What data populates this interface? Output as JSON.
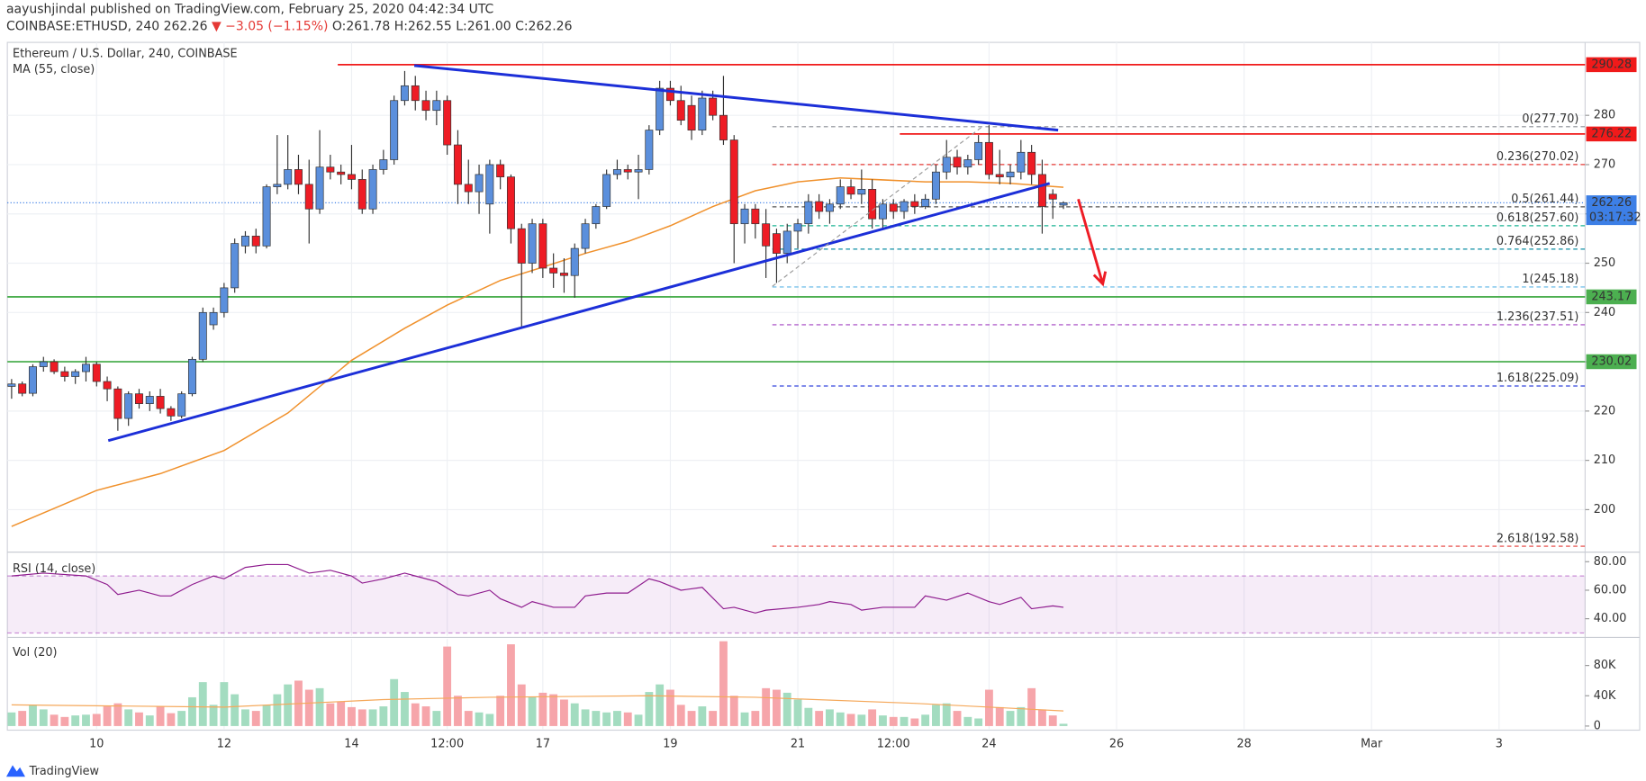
{
  "header": {
    "published": "aayushjindal published on TradingView.com, February 25, 2020 04:42:34 UTC",
    "symbol": "COINBASE:ETHUSD, 240",
    "last": "262.26",
    "change": "▼ −3.05 (−1.15%)",
    "ohlc": "O:261.78 H:262.55 L:261.00 C:262.26"
  },
  "footer": "TradingView",
  "chart_data": [
    {
      "type": "candlestick",
      "title": "Ethereum / U.S. Dollar, 240, COINBASE",
      "up_color": "#5b8fdc",
      "down_color": "#ee1c25",
      "xlim": [
        -0.4,
        148.1
      ],
      "xticks": [
        {
          "value": 8,
          "label": "10"
        },
        {
          "value": 20,
          "label": "12"
        },
        {
          "value": 32,
          "label": "14"
        },
        {
          "value": 41,
          "label": "12:00"
        },
        {
          "value": 50,
          "label": "17"
        },
        {
          "value": 62,
          "label": "19"
        },
        {
          "value": 74,
          "label": "21"
        },
        {
          "value": 83,
          "label": "12:00"
        },
        {
          "value": 92,
          "label": "24"
        },
        {
          "value": 104,
          "label": "26"
        },
        {
          "value": 116,
          "label": "28"
        },
        {
          "value": 128,
          "label": "Mar"
        },
        {
          "value": 140,
          "label": "3"
        }
      ],
      "ylim": [
        191.6,
        294.8
      ],
      "yticks": [
        200,
        210,
        220,
        230,
        240,
        250,
        260,
        270,
        280
      ],
      "grid": true,
      "open": [
        225,
        225.5,
        223.6,
        229,
        230,
        228,
        227,
        228,
        229.5,
        226,
        224.5,
        218.5,
        223.5,
        221.5,
        223,
        220.5,
        219,
        223.5,
        230.5,
        237.5,
        240,
        245,
        253.5,
        255.5,
        253.5,
        265.5,
        266,
        269,
        266,
        261,
        269.5,
        268.5,
        268,
        267,
        261,
        269,
        271,
        283,
        286,
        283,
        281,
        283,
        274,
        266,
        264.5,
        262,
        270,
        267.5,
        257,
        250,
        258,
        249,
        248,
        247.5,
        253,
        258,
        261.5,
        268,
        269,
        268.5,
        269,
        277,
        285.5,
        283,
        282,
        277,
        283.5,
        280,
        275,
        258,
        261,
        258,
        256,
        252,
        256.5,
        258,
        262.5,
        260.5,
        262,
        265.5,
        264,
        265,
        259,
        262,
        260.5,
        262.5,
        261.5,
        263,
        268.5,
        271.5,
        269.5,
        271,
        274.5,
        268,
        267.5,
        268.5,
        272.5,
        268,
        264,
        261.78
      ],
      "high": [
        226.5,
        226,
        229.5,
        231,
        230.5,
        229,
        228.5,
        231,
        230,
        227,
        225,
        224,
        224.5,
        224,
        224.5,
        221,
        224,
        231,
        241,
        241,
        246,
        255,
        256.5,
        257,
        266,
        276,
        276,
        272,
        271,
        277,
        272,
        270,
        274,
        269,
        270,
        273,
        284,
        289,
        288,
        285,
        285,
        284,
        277,
        271,
        270,
        271,
        271,
        268,
        258,
        259,
        259,
        252,
        251,
        254,
        259,
        262,
        269,
        271,
        270,
        272,
        278,
        287,
        287,
        286,
        284,
        285,
        285,
        288,
        276,
        262,
        262,
        261,
        257,
        258,
        259,
        264,
        264,
        263,
        267,
        267,
        269,
        267,
        263,
        263,
        263,
        264,
        264,
        270,
        275,
        273,
        272,
        276,
        278,
        273,
        270,
        275,
        274,
        271,
        265,
        262.55
      ],
      "low": [
        222.5,
        223,
        223,
        228,
        227.5,
        226,
        225.5,
        226,
        225,
        222,
        216,
        217,
        220.5,
        220,
        219.5,
        218,
        218.5,
        223,
        230,
        236.5,
        239,
        244,
        252,
        252,
        253,
        264,
        265,
        264,
        254,
        260,
        267,
        266,
        265,
        260,
        260,
        268,
        270,
        282,
        281,
        279,
        278,
        272,
        262,
        262,
        260,
        256,
        265,
        254,
        237,
        248,
        247,
        245,
        244,
        243,
        252,
        257,
        261,
        267,
        267,
        263,
        268,
        276,
        282,
        278,
        275,
        276,
        279,
        274,
        250,
        254,
        255,
        247,
        246,
        250,
        253,
        256,
        259,
        258,
        261,
        263,
        262,
        257,
        257,
        259,
        259,
        260,
        261,
        262,
        267,
        268,
        268,
        270,
        267,
        266,
        266,
        267,
        266,
        256,
        259,
        261.0
      ],
      "close": [
        225.5,
        223.6,
        229,
        230,
        228,
        227,
        228,
        229.5,
        226,
        224.5,
        218.5,
        223.5,
        221.5,
        223,
        220.5,
        219,
        223.5,
        230.5,
        240,
        240,
        245,
        254,
        255.5,
        253.5,
        265.5,
        266,
        269,
        266,
        261,
        269.5,
        268.5,
        268,
        267,
        261,
        269,
        271,
        283,
        286,
        283,
        281,
        283,
        274,
        266,
        264.5,
        268,
        270,
        267.5,
        257,
        250,
        258,
        249,
        248,
        247.5,
        253,
        258,
        261.5,
        268,
        269,
        268.5,
        269,
        277,
        285.5,
        283,
        279,
        277,
        283.5,
        280,
        275,
        258,
        261,
        258,
        253.5,
        252,
        256.5,
        258,
        262.5,
        260.5,
        262,
        265.5,
        264,
        265,
        259,
        262,
        260.5,
        262.5,
        261.5,
        263,
        268.5,
        271.5,
        269.5,
        271,
        274.5,
        268,
        267.5,
        268.5,
        272.5,
        268,
        261.5,
        263,
        262.26
      ],
      "ma": {
        "name": "MA (55, close)",
        "color": "#f0912c",
        "x": [
          0,
          8,
          14,
          20,
          26,
          32,
          37,
          41,
          46,
          50,
          54,
          58,
          62,
          66,
          70,
          74,
          78,
          82,
          86,
          90,
          94,
          99
        ],
        "values": [
          196.6,
          203.9,
          207.3,
          212,
          219.6,
          230.3,
          236.8,
          241.5,
          246.5,
          249.2,
          252,
          254.4,
          257.6,
          261.5,
          264.7,
          266.5,
          267.3,
          266.9,
          266.5,
          266.5,
          266.2,
          265.4
        ]
      },
      "levels": [
        {
          "value": 290.28,
          "label": "290.28",
          "color": "#f01a1a",
          "from": 30.7
        },
        {
          "value": 276.22,
          "label": "276.22",
          "color": "#f01a1a",
          "from": 83.6
        },
        {
          "value": 243.17,
          "label": "243.17",
          "color": "#4caf50"
        },
        {
          "value": 230.02,
          "label": "230.02",
          "color": "#4caf50"
        }
      ],
      "last_price": {
        "value": 262.26,
        "label": "262.26",
        "countdown": "03:17:32",
        "color": "#3d7fe6"
      },
      "fib": {
        "from": 71.6,
        "levels": [
          {
            "value": 277.7,
            "label": "0(277.70)",
            "color": "#888c94"
          },
          {
            "value": 270.02,
            "label": "0.236(270.02)",
            "color": "#e53935"
          },
          {
            "value": 261.44,
            "label": "0.5(261.44)",
            "color": "#555555"
          },
          {
            "value": 257.6,
            "label": "0.618(257.60)",
            "color": "#1ab394"
          },
          {
            "value": 252.86,
            "label": "0.764(252.86)",
            "color": "#0f8fa6"
          },
          {
            "value": 245.18,
            "label": "1(245.18)",
            "color": "#5bb5e6"
          },
          {
            "value": 237.51,
            "label": "1.236(237.51)",
            "color": "#a13fc0"
          },
          {
            "value": 225.09,
            "label": "1.618(225.09)",
            "color": "#3344dd"
          },
          {
            "value": 192.58,
            "label": "2.618(192.58)",
            "color": "#e53935"
          }
        ]
      },
      "trendlines": [
        {
          "x": [
            37.9,
            98.5
          ],
          "y": [
            290.1,
            277.0
          ],
          "color": "#1c2fd8"
        },
        {
          "x": [
            9.1,
            97.7
          ],
          "y": [
            214.0,
            266.2
          ],
          "color": "#1c2fd8"
        }
      ],
      "fib_line": {
        "x": [
          71.6,
          91.3
        ],
        "y": [
          245.3,
          277.6
        ],
        "color": "#9a9a9a"
      },
      "arrow": {
        "x": [
          100.4,
          102.7
        ],
        "y": [
          263.0,
          245.8
        ],
        "color": "#ee1c25"
      }
    },
    {
      "type": "line",
      "title": "RSI (14, close)",
      "ylim": [
        28,
        86
      ],
      "yticks": [
        {
          "value": 80,
          "label": "80.00"
        },
        {
          "value": 60,
          "label": "60.00"
        },
        {
          "value": 40,
          "label": "40.00"
        }
      ],
      "bands": [
        70,
        30
      ],
      "band_color": "#9c27b0",
      "series": [
        {
          "color": "#8e1b8e",
          "x": [
            0,
            3,
            7,
            9,
            10,
            12,
            14,
            15,
            17,
            19,
            20,
            22,
            24,
            26,
            28,
            30,
            32,
            33,
            35,
            37,
            38,
            40,
            42,
            43,
            45,
            46,
            48,
            49,
            51,
            53,
            54,
            56,
            58,
            60,
            61,
            63,
            65,
            67,
            68,
            70,
            71,
            74,
            76,
            77,
            79,
            80,
            82,
            85,
            86,
            88,
            90,
            92,
            93,
            95,
            96,
            98,
            99
          ],
          "values": [
            70,
            72,
            70,
            64,
            57,
            60,
            56,
            56,
            64,
            70,
            68,
            76,
            78,
            78,
            72,
            74,
            70,
            65,
            68,
            72,
            70,
            66,
            57,
            56,
            60,
            54,
            48,
            52,
            48,
            48,
            56,
            58,
            58,
            68,
            66,
            60,
            62,
            47,
            48,
            44,
            46,
            48,
            50,
            52,
            50,
            46,
            48,
            48,
            56,
            53,
            58,
            52,
            50,
            55,
            47,
            49,
            48
          ]
        }
      ]
    },
    {
      "type": "bar",
      "title": "Vol (20)",
      "up_color": "#a3dcc0",
      "down_color": "#f6a5aa",
      "ylim": [
        -4000,
        115000
      ],
      "yticks": [
        {
          "value": 80000,
          "label": "80K"
        },
        {
          "value": 40000,
          "label": "40K"
        },
        0
      ],
      "values": [
        18000,
        20000,
        28000,
        22000,
        15000,
        12000,
        14000,
        15000,
        16000,
        26000,
        30000,
        22000,
        18000,
        14000,
        26000,
        17000,
        20000,
        38000,
        58000,
        28000,
        58000,
        42000,
        22000,
        20000,
        28000,
        42000,
        55000,
        60000,
        48000,
        50000,
        30000,
        32000,
        25000,
        22000,
        22000,
        26000,
        62000,
        45000,
        30000,
        26000,
        20000,
        105000,
        40000,
        20000,
        18000,
        16000,
        40000,
        108000,
        55000,
        38000,
        44000,
        42000,
        35000,
        30000,
        22000,
        20000,
        18000,
        20000,
        18000,
        15000,
        45000,
        55000,
        48000,
        28000,
        20000,
        26000,
        20000,
        112000,
        40000,
        18000,
        20000,
        50000,
        48000,
        44000,
        35000,
        24000,
        20000,
        22000,
        18000,
        16000,
        15000,
        22000,
        14000,
        12000,
        12000,
        10000,
        15000,
        28000,
        30000,
        20000,
        12000,
        10000,
        48000,
        25000,
        20000,
        25000,
        50000,
        22000,
        14000,
        3000
      ],
      "ma": {
        "color": "#f5a85a",
        "x": [
          0,
          20,
          35,
          45,
          60,
          70,
          85,
          99
        ],
        "values": [
          28000,
          25000,
          35000,
          38000,
          40000,
          38000,
          30000,
          20000
        ]
      }
    }
  ]
}
